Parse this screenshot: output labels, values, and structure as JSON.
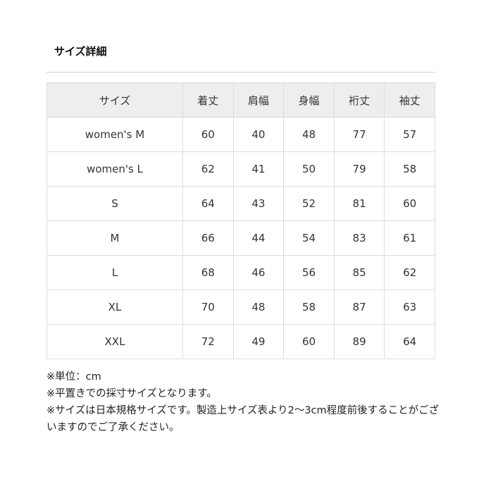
{
  "title": "サイズ詳細",
  "table": {
    "headers": [
      "サイズ",
      "着丈",
      "肩幅",
      "身幅",
      "裄丈",
      "袖丈"
    ],
    "rows": [
      [
        "women's M",
        "60",
        "40",
        "48",
        "77",
        "57"
      ],
      [
        "women's L",
        "62",
        "41",
        "50",
        "79",
        "58"
      ],
      [
        "S",
        "64",
        "43",
        "52",
        "81",
        "60"
      ],
      [
        "M",
        "66",
        "44",
        "54",
        "83",
        "61"
      ],
      [
        "L",
        "68",
        "46",
        "56",
        "85",
        "62"
      ],
      [
        "XL",
        "70",
        "48",
        "58",
        "87",
        "63"
      ],
      [
        "XXL",
        "72",
        "49",
        "60",
        "89",
        "64"
      ]
    ]
  },
  "notes": [
    "※単位：cm",
    "※平置きでの採寸サイズとなります。",
    "※サイズは日本規格サイズです。製造上サイズ表より2〜3cm程度前後することがございますのでご了承ください。"
  ]
}
